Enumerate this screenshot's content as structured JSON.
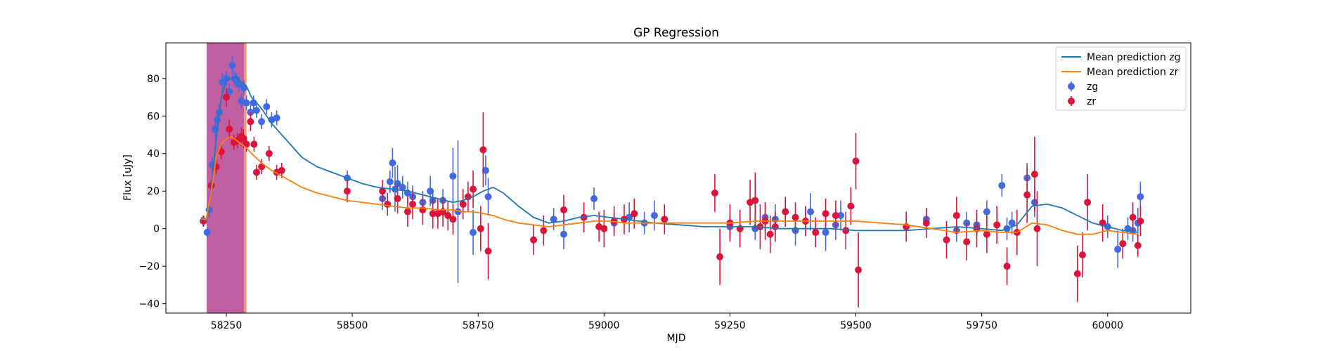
{
  "chart_data": {
    "type": "scatter",
    "title": "GP Regression",
    "xlabel": "MJD",
    "ylabel": "Flux [uJy]",
    "xlim": [
      58130,
      60165
    ],
    "ylim": [
      -45,
      99
    ],
    "xticks": [
      58250,
      58500,
      58750,
      59000,
      59250,
      59500,
      59750,
      60000
    ],
    "xtick_labels": [
      "58250",
      "58500",
      "58750",
      "59000",
      "59250",
      "59500",
      "59750",
      "60000"
    ],
    "yticks": [
      -40,
      -20,
      0,
      20,
      40,
      60,
      80
    ],
    "ytick_labels": [
      "−40",
      "−20",
      "0",
      "20",
      "40",
      "60",
      "80"
    ],
    "grid": false,
    "legend_position": "top-right",
    "shaded_regions": [
      {
        "x0": 58211,
        "x1": 58285,
        "color": "#c05fa2"
      },
      {
        "x0": 58285,
        "x1": 58290,
        "color": "#ef9a6b"
      }
    ],
    "series": [
      {
        "name": "Mean prediction zg",
        "kind": "line",
        "color": "#1f77b4",
        "x": [
          58200,
          58210,
          58220,
          58230,
          58240,
          58250,
          58260,
          58270,
          58280,
          58290,
          58300,
          58320,
          58340,
          58360,
          58380,
          58400,
          58430,
          58460,
          58490,
          58520,
          58550,
          58580,
          58610,
          58640,
          58670,
          58700,
          58720,
          58740,
          58760,
          58780,
          58800,
          58830,
          58860,
          58890,
          58920,
          58950,
          58980,
          59010,
          59040,
          59070,
          59100,
          59150,
          59200,
          59250,
          59300,
          59350,
          59400,
          59450,
          59500,
          59550,
          59600,
          59650,
          59700,
          59750,
          59790,
          59820,
          59850,
          59880,
          59910,
          59940,
          59970,
          60000,
          60030,
          60060
        ],
        "y": [
          6,
          4,
          22,
          48,
          70,
          79,
          80,
          81,
          78,
          76,
          70,
          64,
          56,
          50,
          44,
          38,
          33,
          30,
          27,
          24,
          22,
          21,
          20,
          18,
          16,
          14,
          15,
          17,
          20,
          22,
          19,
          12,
          6,
          3,
          4,
          6,
          7,
          6,
          5,
          4,
          3,
          2,
          1,
          1,
          1,
          0,
          0,
          0,
          -1,
          -1,
          -1,
          0,
          1,
          0,
          -1,
          2,
          12,
          13,
          11,
          7,
          3,
          1,
          -1,
          -2
        ]
      },
      {
        "name": "Mean prediction zr",
        "kind": "line",
        "color": "#ff7f0e",
        "x": [
          58200,
          58210,
          58220,
          58230,
          58240,
          58250,
          58260,
          58270,
          58280,
          58290,
          58300,
          58320,
          58340,
          58360,
          58380,
          58400,
          58430,
          58460,
          58490,
          58520,
          58550,
          58580,
          58610,
          58640,
          58670,
          58700,
          58720,
          58740,
          58760,
          58780,
          58800,
          58830,
          58860,
          58890,
          58920,
          58950,
          58980,
          59010,
          59040,
          59070,
          59100,
          59150,
          59200,
          59250,
          59300,
          59350,
          59400,
          59450,
          59500,
          59550,
          59600,
          59650,
          59700,
          59750,
          59790,
          59820,
          59850,
          59880,
          59910,
          59940,
          59970,
          60000,
          60030,
          60060
        ],
        "y": [
          5,
          5,
          20,
          38,
          45,
          48,
          49,
          47,
          45,
          43,
          40,
          35,
          31,
          28,
          25,
          22,
          19,
          17,
          15,
          14,
          13,
          12,
          11,
          11,
          10,
          10,
          9,
          9,
          8,
          7,
          5,
          3,
          2,
          1,
          2,
          3,
          4,
          4,
          3,
          3,
          3,
          3,
          3,
          3,
          4,
          4,
          4,
          4,
          4,
          3,
          2,
          0,
          -2,
          -1,
          -2,
          -2,
          3,
          2,
          -1,
          -3,
          -3,
          -1,
          -2,
          -3
        ]
      },
      {
        "name": "zg",
        "kind": "errorbar",
        "color": "#4169e1",
        "x": [
          58204,
          58212,
          58216,
          58222,
          58228,
          58232,
          58236,
          58242,
          58250,
          58256,
          58262,
          58266,
          58270,
          58275,
          58280,
          58285,
          58290,
          58298,
          58304,
          58310,
          58320,
          58330,
          58340,
          58350,
          58490,
          58560,
          58575,
          58580,
          58585,
          58590,
          58600,
          58610,
          58620,
          58640,
          58655,
          58660,
          58680,
          58700,
          58710,
          58740,
          58765,
          58770,
          58900,
          58920,
          58980,
          59020,
          59050,
          59080,
          59100,
          59250,
          59300,
          59320,
          59340,
          59380,
          59400,
          59410,
          59440,
          59460,
          59470,
          59640,
          59700,
          59720,
          59740,
          59760,
          59790,
          59800,
          59810,
          59840,
          59855,
          60000,
          60020,
          60040,
          60050,
          60060,
          60065
        ],
        "y": [
          4,
          -2,
          10,
          34,
          53,
          58,
          62,
          78,
          80,
          73,
          87,
          80,
          79,
          77,
          68,
          75,
          67,
          62,
          67,
          63,
          57,
          65,
          58,
          59,
          27,
          16,
          25,
          35,
          21,
          24,
          22,
          19,
          17,
          14,
          20,
          15,
          15,
          28,
          9,
          -2,
          31,
          17,
          5,
          -3,
          16,
          3,
          6,
          3,
          7,
          1,
          0,
          6,
          5,
          -1,
          4,
          9,
          -2,
          2,
          7,
          5,
          -1,
          3,
          2,
          9,
          23,
          0,
          3,
          27,
          14,
          1,
          -11,
          0,
          -1,
          3,
          17
        ],
        "err": [
          3,
          3,
          4,
          4,
          5,
          5,
          4,
          5,
          4,
          4,
          5,
          4,
          4,
          4,
          4,
          4,
          4,
          4,
          4,
          4,
          4,
          4,
          4,
          4,
          4,
          6,
          6,
          8,
          12,
          10,
          6,
          6,
          6,
          6,
          8,
          6,
          6,
          15,
          38,
          12,
          8,
          10,
          6,
          8,
          6,
          6,
          8,
          6,
          8,
          6,
          6,
          8,
          8,
          8,
          8,
          10,
          10,
          8,
          8,
          6,
          6,
          6,
          6,
          6,
          6,
          6,
          6,
          8,
          8,
          6,
          10,
          6,
          6,
          8,
          8
        ]
      },
      {
        "name": "zr",
        "kind": "errorbar",
        "color": "#dc143c",
        "x": [
          58205,
          58220,
          58230,
          58240,
          58250,
          58256,
          58265,
          58272,
          58280,
          58284,
          58290,
          58298,
          58305,
          58310,
          58320,
          58335,
          58350,
          58360,
          58490,
          58560,
          58570,
          58590,
          58610,
          58620,
          58640,
          58660,
          58670,
          58680,
          58690,
          58700,
          58720,
          58730,
          58740,
          58755,
          58760,
          58770,
          58860,
          58880,
          58920,
          58960,
          58990,
          59000,
          59020,
          59040,
          59060,
          59120,
          59220,
          59230,
          59250,
          59270,
          59290,
          59300,
          59310,
          59320,
          59330,
          59340,
          59360,
          59380,
          59400,
          59420,
          59440,
          59460,
          59480,
          59490,
          59500,
          59505,
          59600,
          59640,
          59680,
          59700,
          59720,
          59740,
          59760,
          59780,
          59800,
          59820,
          59840,
          59855,
          59860,
          59940,
          59950,
          59960,
          59990,
          60030,
          60050,
          60060,
          60065
        ],
        "y": [
          4,
          23,
          33,
          41,
          70,
          53,
          46,
          47,
          49,
          48,
          45,
          57,
          45,
          30,
          33,
          40,
          30,
          31,
          20,
          20,
          13,
          16,
          9,
          13,
          10,
          8,
          8,
          9,
          7,
          5,
          13,
          17,
          21,
          0,
          42,
          -12,
          -6,
          -1,
          10,
          6,
          1,
          0,
          4,
          5,
          8,
          5,
          19,
          -15,
          3,
          0,
          14,
          15,
          1,
          4,
          -3,
          1,
          9,
          6,
          4,
          -2,
          8,
          7,
          -1,
          12,
          36,
          -22,
          1,
          3,
          -6,
          7,
          -7,
          0,
          -3,
          2,
          -20,
          -2,
          18,
          29,
          0,
          -24,
          -14,
          14,
          3,
          -8,
          6,
          -9,
          4
        ],
        "err": [
          3,
          3,
          4,
          4,
          5,
          5,
          4,
          4,
          5,
          5,
          4,
          5,
          4,
          4,
          4,
          4,
          4,
          4,
          6,
          6,
          6,
          8,
          8,
          8,
          8,
          8,
          8,
          8,
          8,
          8,
          8,
          8,
          10,
          12,
          20,
          15,
          8,
          8,
          8,
          8,
          8,
          10,
          8,
          8,
          8,
          8,
          10,
          15,
          10,
          10,
          12,
          15,
          12,
          10,
          10,
          8,
          8,
          8,
          8,
          8,
          8,
          8,
          10,
          10,
          15,
          20,
          8,
          8,
          10,
          10,
          10,
          10,
          10,
          10,
          10,
          12,
          15,
          20,
          20,
          15,
          12,
          15,
          10,
          8,
          8,
          6,
          8
        ]
      }
    ]
  }
}
